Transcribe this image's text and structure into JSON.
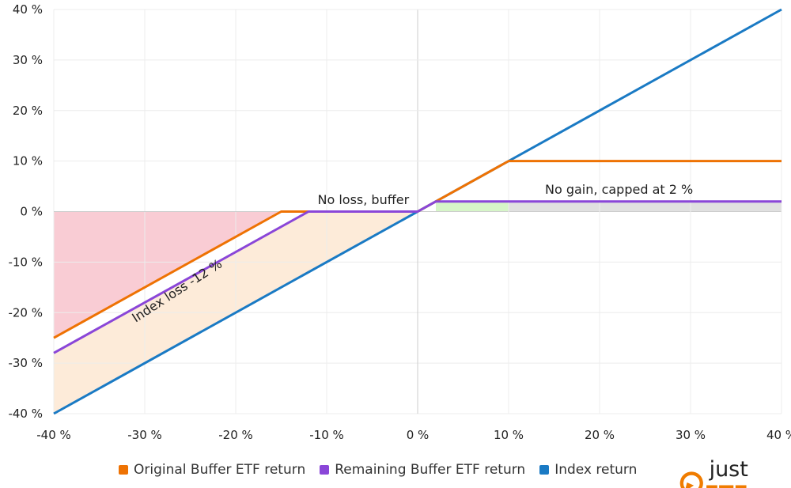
{
  "chart_data": {
    "type": "line",
    "title": "",
    "xlabel": "",
    "ylabel": "",
    "xlim": [
      -40,
      40
    ],
    "ylim": [
      -40,
      40
    ],
    "grid": true,
    "legend_position": "bottom",
    "x_ticks": [
      "-40 %",
      "-30 %",
      "-20 %",
      "-10 %",
      "0 %",
      "10 %",
      "20 %",
      "30 %",
      "40 %"
    ],
    "y_ticks": [
      "40 %",
      "30 %",
      "20 %",
      "10 %",
      "0 %",
      "-10 %",
      "-20 %",
      "-30 %",
      "-40 %"
    ],
    "series": [
      {
        "name": "Original Buffer ETF return",
        "color": "#ee7203",
        "x": [
          -40,
          -15,
          -12,
          0,
          10,
          40
        ],
        "y": [
          -25,
          0,
          0,
          0,
          10,
          10
        ]
      },
      {
        "name": "Remaining Buffer ETF return",
        "color": "#8a46d8",
        "x": [
          -40,
          -12,
          0,
          2,
          40
        ],
        "y": [
          -28,
          0,
          0,
          2,
          2
        ]
      },
      {
        "name": "Index return",
        "color": "#1a7ac4",
        "x": [
          -40,
          40
        ],
        "y": [
          -40,
          40
        ]
      }
    ],
    "shaded_regions": [
      {
        "color": "#f9ccd4",
        "between": "original buffer line and 0",
        "x": [
          -40,
          -15
        ]
      },
      {
        "color": "#fdebd9",
        "between": "index line and remaining buffer line",
        "x": [
          -40,
          0
        ]
      },
      {
        "color": "#d6f5c8",
        "between": "0 and remaining buffer line",
        "x": [
          2,
          10
        ]
      },
      {
        "color": "#e0e0e0",
        "between": "0 and remaining buffer line",
        "x": [
          10,
          40
        ]
      }
    ],
    "annotations": [
      {
        "text": "No loss, buffer",
        "x": -11,
        "y": 1.5
      },
      {
        "text": "Index loss -12 %",
        "x": -31,
        "y": -22,
        "rotation": -33
      },
      {
        "text": "No gain, capped at 2 %",
        "x": 14,
        "y": 3.5
      }
    ]
  },
  "logo": {
    "text_plain": "just",
    "text_bold": "ETF",
    "color": "#f07c00"
  }
}
